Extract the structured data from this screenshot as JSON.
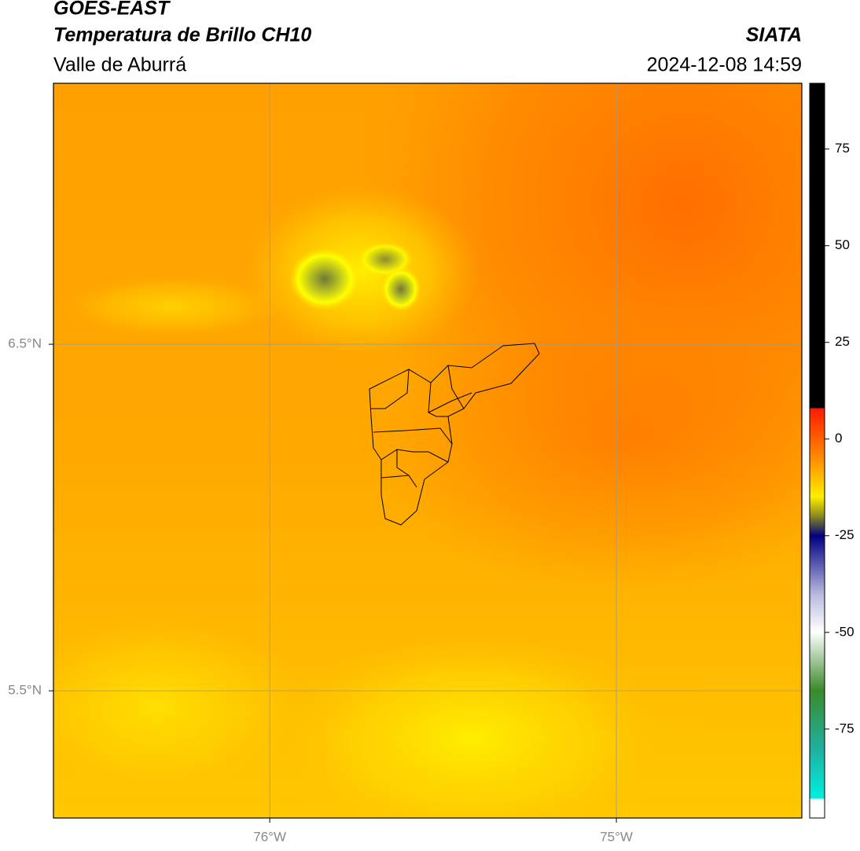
{
  "header": {
    "title": "GOES-EAST",
    "subtitle": "Temperatura de Brillo CH10",
    "region": "Valle de Aburrá",
    "source": "SIATA",
    "timestamp": "2024-12-08 14:59"
  },
  "map": {
    "xlim": [
      -76.624,
      -74.465
    ],
    "ylim": [
      5.133,
      7.253
    ],
    "xticks": [
      {
        "value": -76,
        "label": "76°W"
      },
      {
        "value": -75,
        "label": "75°W"
      }
    ],
    "yticks": [
      {
        "value": 6.5,
        "label": "6.5°N"
      },
      {
        "value": 5.5,
        "label": "5.5°N"
      }
    ],
    "grid": true
  },
  "colorbar": {
    "lim": [
      -98,
      92
    ],
    "ticks": [
      75,
      50,
      25,
      0,
      -25,
      -50,
      -75
    ]
  }
}
